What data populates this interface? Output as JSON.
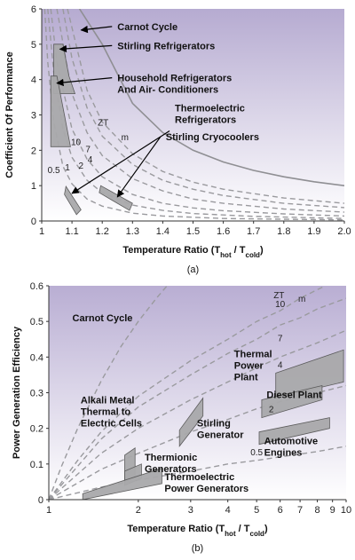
{
  "colors": {
    "bg_top": "#b9aed3",
    "bg_bottom": "#ffffff",
    "carnot": "#8f8f93",
    "zt_curve": "#9a9a9e",
    "region_fill": "#a9a9ab",
    "region_stroke": "#555555"
  },
  "chart_data": [
    {
      "type": "line",
      "caption": "(a)",
      "xlabel": "Temperature Ratio (T",
      "xlabel_sub1": "hot",
      "xlabel_mid": " / T",
      "xlabel_sub2": "cold",
      "xlabel_end": ")",
      "ylabel": "Coefficient Of Performance",
      "xlim": [
        1.0,
        2.0
      ],
      "ylim": [
        0,
        6
      ],
      "xticks": [
        "1",
        "1.1",
        "1.2",
        "1.3",
        "1.4",
        "1.5",
        "1.6",
        "1.7",
        "1.8",
        "1.9",
        "2.0"
      ],
      "xtick_values": [
        1.0,
        1.1,
        1.2,
        1.3,
        1.4,
        1.5,
        1.6,
        1.7,
        1.8,
        1.9,
        2.0
      ],
      "yticks": [
        "0",
        "1",
        "2",
        "3",
        "4",
        "5",
        "6"
      ],
      "ytick_values": [
        0,
        1,
        2,
        3,
        4,
        5,
        6
      ],
      "zt_label": "ZT",
      "zt_sub": "m",
      "series": [
        {
          "name": "Carnot Cycle",
          "style": "solid",
          "points": [
            [
              1.125,
              6.0
            ],
            [
              1.2,
              5.0
            ],
            [
              1.3,
              3.33
            ],
            [
              1.4,
              2.5
            ],
            [
              1.5,
              2.0
            ],
            [
              1.6,
              1.67
            ],
            [
              1.7,
              1.43
            ],
            [
              1.8,
              1.25
            ],
            [
              1.9,
              1.11
            ],
            [
              2.0,
              1.0
            ]
          ]
        },
        {
          "zt": "10",
          "style": "dashed",
          "points": [
            [
              1.085,
              6.0
            ],
            [
              1.15,
              3.7
            ],
            [
              1.2,
              2.8
            ],
            [
              1.3,
              1.9
            ],
            [
              1.4,
              1.4
            ],
            [
              1.5,
              1.1
            ],
            [
              1.6,
              0.9
            ],
            [
              1.8,
              0.65
            ],
            [
              2.0,
              0.5
            ]
          ]
        },
        {
          "zt": "7",
          "style": "dashed",
          "points": [
            [
              1.07,
              6.0
            ],
            [
              1.1,
              4.6
            ],
            [
              1.15,
              3.2
            ],
            [
              1.2,
              2.4
            ],
            [
              1.3,
              1.6
            ],
            [
              1.4,
              1.15
            ],
            [
              1.5,
              0.9
            ],
            [
              1.6,
              0.72
            ],
            [
              1.8,
              0.5
            ],
            [
              2.0,
              0.38
            ]
          ]
        },
        {
          "zt": "4",
          "style": "dashed",
          "points": [
            [
              1.05,
              6.0
            ],
            [
              1.1,
              3.6
            ],
            [
              1.15,
              2.5
            ],
            [
              1.2,
              1.85
            ],
            [
              1.3,
              1.2
            ],
            [
              1.4,
              0.85
            ],
            [
              1.5,
              0.62
            ],
            [
              1.6,
              0.5
            ],
            [
              1.8,
              0.34
            ],
            [
              2.0,
              0.25
            ]
          ]
        },
        {
          "zt": "2",
          "style": "dashed",
          "points": [
            [
              1.03,
              6.0
            ],
            [
              1.05,
              4.5
            ],
            [
              1.1,
              2.6
            ],
            [
              1.15,
              1.75
            ],
            [
              1.2,
              1.25
            ],
            [
              1.3,
              0.75
            ],
            [
              1.4,
              0.5
            ],
            [
              1.5,
              0.37
            ],
            [
              1.6,
              0.29
            ],
            [
              1.8,
              0.2
            ],
            [
              2.0,
              0.14
            ]
          ]
        },
        {
          "zt": "1",
          "style": "dashed",
          "points": [
            [
              1.02,
              6.0
            ],
            [
              1.04,
              4.2
            ],
            [
              1.07,
              2.6
            ],
            [
              1.1,
              1.8
            ],
            [
              1.15,
              1.15
            ],
            [
              1.2,
              0.8
            ],
            [
              1.3,
              0.45
            ],
            [
              1.4,
              0.3
            ],
            [
              1.5,
              0.21
            ],
            [
              1.7,
              0.13
            ],
            [
              2.0,
              0.07
            ]
          ]
        },
        {
          "zt": "0.5",
          "style": "dashed",
          "points": [
            [
              1.01,
              6.0
            ],
            [
              1.02,
              4.5
            ],
            [
              1.04,
              2.8
            ],
            [
              1.07,
              1.55
            ],
            [
              1.1,
              1.05
            ],
            [
              1.15,
              0.62
            ],
            [
              1.2,
              0.42
            ],
            [
              1.3,
              0.22
            ],
            [
              1.4,
              0.14
            ],
            [
              1.6,
              0.07
            ],
            [
              2.0,
              0.03
            ]
          ]
        }
      ],
      "regions": [
        {
          "name": "Stirling Refrigerators",
          "points": [
            [
              1.04,
              5.0
            ],
            [
              1.07,
              5.0
            ],
            [
              1.09,
              4.1
            ],
            [
              1.11,
              3.6
            ],
            [
              1.04,
              3.6
            ]
          ]
        },
        {
          "name": "Household Refrigerators And Air- Conditioners",
          "points": [
            [
              1.03,
              4.1
            ],
            [
              1.05,
              4.1
            ],
            [
              1.075,
              3.0
            ],
            [
              1.095,
              2.1
            ],
            [
              1.03,
              2.1
            ]
          ]
        },
        {
          "name": "Thermoelectric Refrigerators",
          "points": [
            [
              1.08,
              0.98
            ],
            [
              1.13,
              0.32
            ],
            [
              1.115,
              0.18
            ],
            [
              1.075,
              0.75
            ]
          ]
        },
        {
          "name": "Stirling Cryocoolers",
          "points": [
            [
              1.195,
              1.0
            ],
            [
              1.3,
              0.5
            ],
            [
              1.29,
              0.3
            ],
            [
              1.19,
              0.8
            ]
          ]
        }
      ],
      "annotations": [
        {
          "text": "Carnot Cycle",
          "arrow_to": [
            1.13,
            5.4
          ],
          "label_at": [
            1.25,
            5.4
          ]
        },
        {
          "text": "Stirling Refrigerators",
          "arrow_to": [
            1.06,
            4.86
          ],
          "label_at": [
            1.25,
            4.86
          ]
        },
        {
          "text": "Household Refrigerators",
          "text2": "And Air- Conditioners",
          "arrow_to": [
            1.05,
            3.9
          ],
          "label_at": [
            1.25,
            3.95
          ]
        },
        {
          "text": "Thermoelectric",
          "text2": "Refrigerators",
          "arrow_to": [
            1.1,
            0.78
          ],
          "label_at": [
            1.44,
            3.1
          ]
        },
        {
          "text": "Stirling Cryocoolers",
          "arrow_to": [
            1.25,
            0.68
          ],
          "label_at": [
            1.41,
            2.28
          ]
        }
      ]
    },
    {
      "type": "line",
      "caption": "(b)",
      "xlabel": "Temperature Ratio (T",
      "xlabel_sub1": "hot",
      "xlabel_mid": " / T",
      "xlabel_sub2": "cold",
      "xlabel_end": ")",
      "ylabel": "Power Generation Efficiency",
      "x_scale": "log",
      "xlim": [
        1,
        10
      ],
      "ylim": [
        0,
        0.6
      ],
      "xticks": [
        "1",
        "2",
        "3",
        "4",
        "5",
        "6",
        "7",
        "8",
        "9",
        "10"
      ],
      "xtick_values": [
        1,
        2,
        3,
        4,
        5,
        6,
        7,
        8,
        9,
        10
      ],
      "yticks": [
        "0",
        "0.1",
        "0.2",
        "0.3",
        "0.4",
        "0.5",
        "0.6"
      ],
      "ytick_values": [
        0,
        0.1,
        0.2,
        0.3,
        0.4,
        0.5,
        0.6
      ],
      "zt_label": "ZT",
      "zt_sub": "m",
      "series": [
        {
          "name": "Carnot Cycle",
          "style": "dashed",
          "points": [
            [
              1.0,
              0.0
            ],
            [
              1.1,
              0.091
            ],
            [
              1.25,
              0.2
            ],
            [
              1.5,
              0.333
            ],
            [
              1.75,
              0.43
            ],
            [
              2.0,
              0.5
            ],
            [
              2.3,
              0.565
            ],
            [
              2.5,
              0.6
            ]
          ]
        },
        {
          "zt": "10",
          "style": "dashed",
          "points": [
            [
              1.0,
              0.0
            ],
            [
              1.25,
              0.11
            ],
            [
              1.5,
              0.19
            ],
            [
              2.0,
              0.29
            ],
            [
              3.0,
              0.39
            ],
            [
              4.0,
              0.45
            ],
            [
              5.0,
              0.5
            ],
            [
              6.0,
              0.53
            ],
            [
              7.0,
              0.565
            ],
            [
              8.5,
              0.6
            ]
          ]
        },
        {
          "zt": "7",
          "style": "dashed",
          "points": [
            [
              1.0,
              0.0
            ],
            [
              1.5,
              0.17
            ],
            [
              2.0,
              0.26
            ],
            [
              3.0,
              0.35
            ],
            [
              4.0,
              0.41
            ],
            [
              5.0,
              0.45
            ],
            [
              6.0,
              0.49
            ],
            [
              7.0,
              0.51
            ],
            [
              8.0,
              0.535
            ],
            [
              10.0,
              0.565
            ]
          ]
        },
        {
          "zt": "4",
          "style": "dashed",
          "points": [
            [
              1.0,
              0.0
            ],
            [
              1.5,
              0.13
            ],
            [
              2.0,
              0.2
            ],
            [
              3.0,
              0.28
            ],
            [
              4.0,
              0.33
            ],
            [
              5.0,
              0.37
            ],
            [
              6.0,
              0.4
            ],
            [
              8.0,
              0.44
            ],
            [
              10.0,
              0.475
            ]
          ]
        },
        {
          "zt": "2",
          "style": "dashed",
          "points": [
            [
              1.0,
              0.0
            ],
            [
              1.5,
              0.085
            ],
            [
              2.0,
              0.13
            ],
            [
              3.0,
              0.19
            ],
            [
              4.0,
              0.225
            ],
            [
              5.0,
              0.255
            ],
            [
              6.0,
              0.275
            ],
            [
              8.0,
              0.3
            ],
            [
              10.0,
              0.32
            ]
          ]
        },
        {
          "zt": "0.5",
          "style": "dashed",
          "points": [
            [
              1.0,
              0.0
            ],
            [
              1.5,
              0.035
            ],
            [
              2.0,
              0.055
            ],
            [
              3.0,
              0.08
            ],
            [
              4.0,
              0.1
            ],
            [
              5.0,
              0.11
            ],
            [
              6.0,
              0.12
            ],
            [
              8.0,
              0.135
            ],
            [
              10.0,
              0.15
            ]
          ]
        }
      ],
      "regions": [
        {
          "name": "Thermal Power Plant",
          "points": [
            [
              5.8,
              0.355
            ],
            [
              9.8,
              0.42
            ],
            [
              9.8,
              0.33
            ],
            [
              5.8,
              0.285
            ]
          ]
        },
        {
          "name": "Diesel Plant",
          "points": [
            [
              5.2,
              0.28
            ],
            [
              8.3,
              0.32
            ],
            [
              8.3,
              0.28
            ],
            [
              5.2,
              0.23
            ]
          ]
        },
        {
          "name": "Automotive Engines",
          "points": [
            [
              5.1,
              0.19
            ],
            [
              8.8,
              0.23
            ],
            [
              8.8,
              0.2
            ],
            [
              5.1,
              0.155
            ]
          ]
        },
        {
          "name": "Stirling Generator",
          "points": [
            [
              2.75,
              0.195
            ],
            [
              3.3,
              0.285
            ],
            [
              3.3,
              0.235
            ],
            [
              2.75,
              0.15
            ]
          ]
        },
        {
          "name": "Alkali Metal Thermal to Electric Cells",
          "points": [
            [
              1.8,
              0.125
            ],
            [
              1.95,
              0.145
            ],
            [
              1.95,
              0.06
            ],
            [
              1.8,
              0.05
            ]
          ]
        },
        {
          "name": "Thermionic Generators",
          "points": [
            [
              1.8,
              0.08
            ],
            [
              2.05,
              0.1
            ],
            [
              2.05,
              0.06
            ],
            [
              1.8,
              0.04
            ]
          ]
        },
        {
          "name": "Thermoelectric Power Generators",
          "points": [
            [
              1.3,
              0.017
            ],
            [
              2.4,
              0.088
            ],
            [
              2.4,
              0.045
            ],
            [
              1.3,
              0.0
            ]
          ]
        }
      ],
      "labels": [
        {
          "text": "Carnot Cycle",
          "at": [
            1.2,
            0.5
          ]
        },
        {
          "text": "Thermal",
          "text2": "Power",
          "text3": "Plant",
          "at": [
            4.2,
            0.4
          ]
        },
        {
          "text": "Diesel Plant",
          "at": [
            5.4,
            0.285
          ]
        },
        {
          "text": "Automotive",
          "text2": "Engines",
          "at": [
            5.3,
            0.155
          ]
        },
        {
          "text": "Stirling",
          "text2": "Generator",
          "at": [
            3.15,
            0.205
          ]
        },
        {
          "text": "Alkali Metal",
          "text2": "Thermal to",
          "text3": "Electric Cells",
          "at": [
            1.28,
            0.27
          ]
        },
        {
          "text": "Thermionic",
          "text2": "Generators",
          "at": [
            2.1,
            0.11
          ]
        },
        {
          "text": "Thermoelectric",
          "text2": "Power Generators",
          "at": [
            2.45,
            0.055
          ]
        }
      ]
    }
  ]
}
